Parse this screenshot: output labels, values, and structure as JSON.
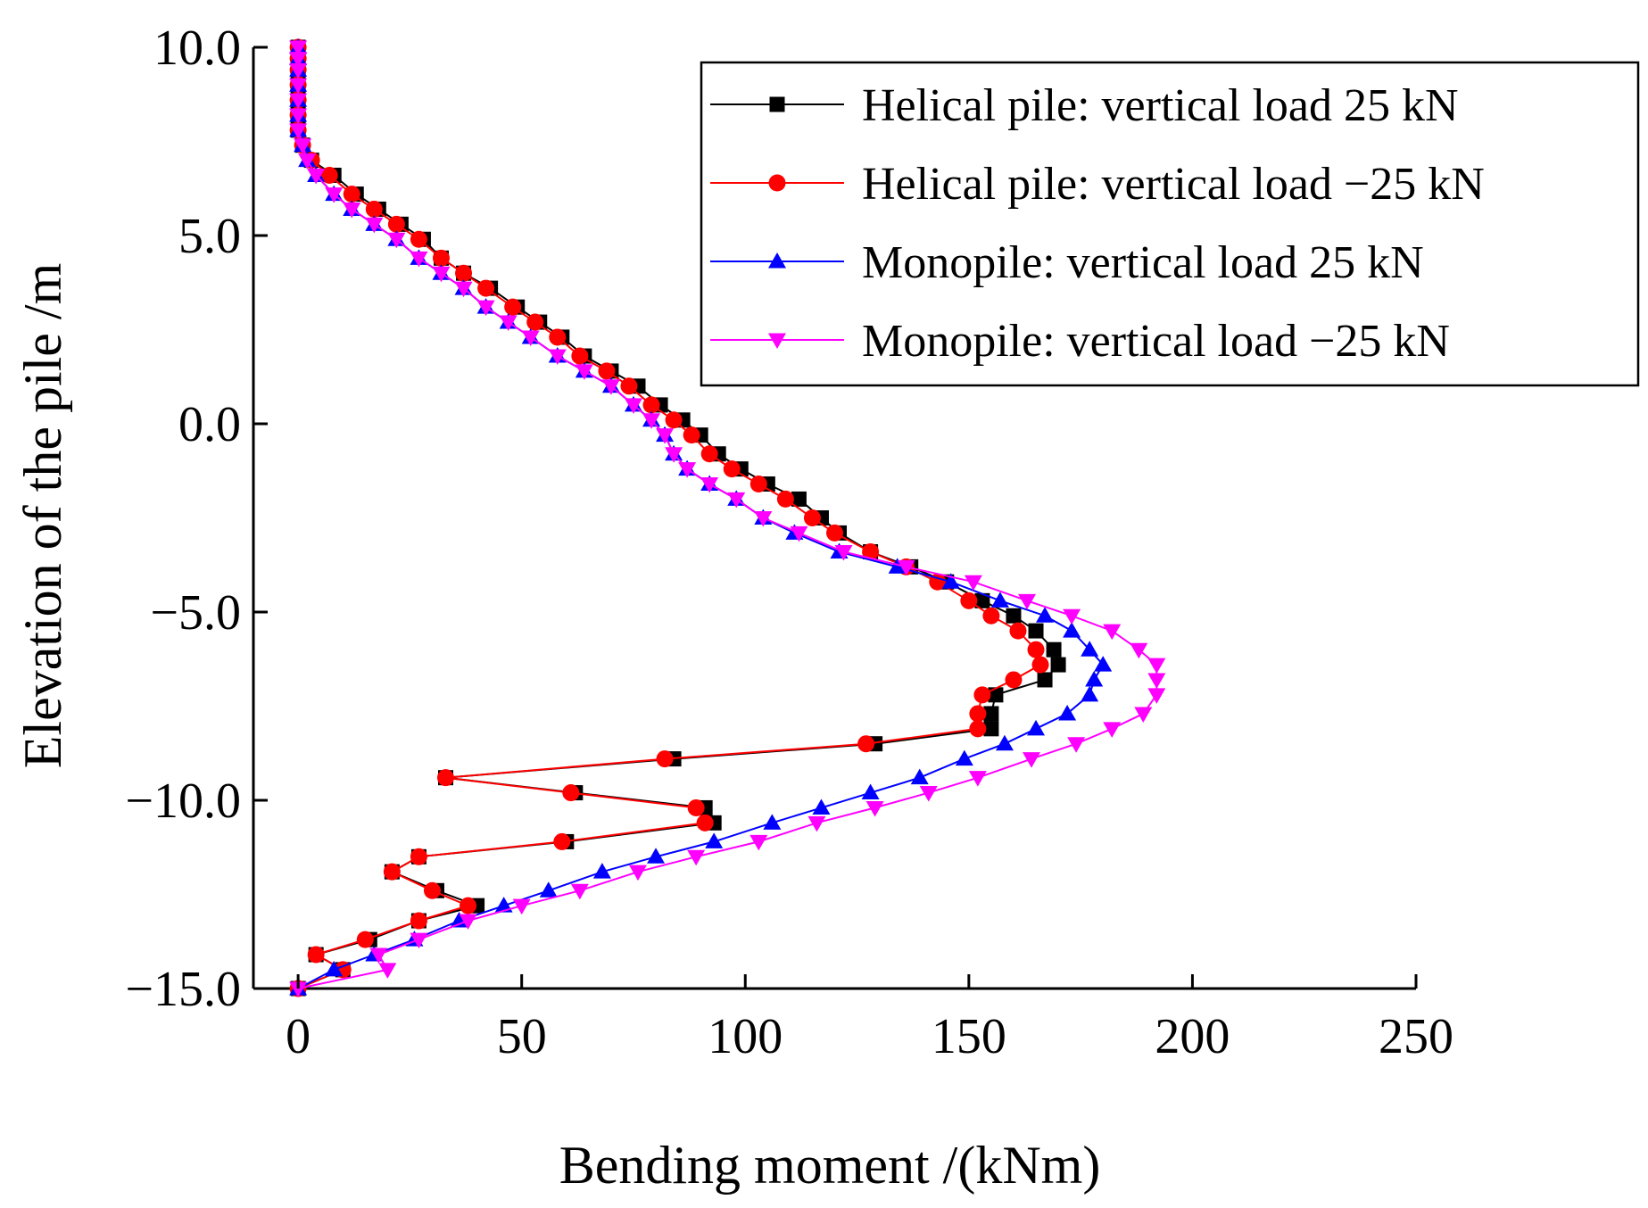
{
  "chart_data": {
    "type": "line",
    "title": "",
    "xlabel": "Bending moment /(kNm)",
    "ylabel": "Elevation of the pile /m",
    "xlim": [
      -10,
      250
    ],
    "ylim": [
      -15,
      10
    ],
    "xticks": [
      0,
      50,
      100,
      150,
      200,
      250
    ],
    "yticks": [
      10,
      5,
      0,
      -5,
      -10,
      -15
    ],
    "xtick_labels": [
      "0",
      "50",
      "100",
      "150",
      "200",
      "250"
    ],
    "ytick_labels": [
      "10.0",
      "5.0",
      "0.0",
      "−5.0",
      "−10.0",
      "−15.0"
    ],
    "grid": false,
    "legend_position": "top-right",
    "series": [
      {
        "name": "Helical pile: vertical load 25 kN",
        "color": "#000000",
        "marker": "square",
        "points": [
          [
            0,
            10
          ],
          [
            0,
            9.7
          ],
          [
            0,
            9.4
          ],
          [
            0,
            9.0
          ],
          [
            0,
            8.6
          ],
          [
            0,
            8.2
          ],
          [
            0,
            7.8
          ],
          [
            1,
            7.4
          ],
          [
            3,
            7.0
          ],
          [
            8,
            6.6
          ],
          [
            13,
            6.1
          ],
          [
            18,
            5.7
          ],
          [
            23,
            5.3
          ],
          [
            28,
            4.9
          ],
          [
            32,
            4.4
          ],
          [
            37,
            4.0
          ],
          [
            43,
            3.6
          ],
          [
            49,
            3.1
          ],
          [
            54,
            2.7
          ],
          [
            59,
            2.3
          ],
          [
            64,
            1.8
          ],
          [
            70,
            1.4
          ],
          [
            76,
            1.0
          ],
          [
            81,
            0.5
          ],
          [
            86,
            0.1
          ],
          [
            90,
            -0.3
          ],
          [
            94,
            -0.8
          ],
          [
            99,
            -1.2
          ],
          [
            105,
            -1.6
          ],
          [
            112,
            -2.0
          ],
          [
            117,
            -2.5
          ],
          [
            121,
            -2.9
          ],
          [
            128,
            -3.4
          ],
          [
            137,
            -3.8
          ],
          [
            145,
            -4.2
          ],
          [
            153,
            -4.7
          ],
          [
            160,
            -5.1
          ],
          [
            165,
            -5.5
          ],
          [
            169,
            -6.0
          ],
          [
            170,
            -6.4
          ],
          [
            167,
            -6.8
          ],
          [
            156,
            -7.2
          ],
          [
            155,
            -7.7
          ],
          [
            155,
            -8.1
          ],
          [
            129,
            -8.5
          ],
          [
            84,
            -8.9
          ],
          [
            33,
            -9.4
          ],
          [
            62,
            -9.8
          ],
          [
            91,
            -10.2
          ],
          [
            93,
            -10.6
          ],
          [
            60,
            -11.1
          ],
          [
            27,
            -11.5
          ],
          [
            21,
            -11.9
          ],
          [
            31,
            -12.4
          ],
          [
            40,
            -12.8
          ],
          [
            27,
            -13.2
          ],
          [
            16,
            -13.7
          ],
          [
            4,
            -14.1
          ],
          [
            10,
            -14.5
          ],
          [
            0,
            -15.0
          ]
        ]
      },
      {
        "name": "Helical pile: vertical load −25 kN",
        "color": "#ff0000",
        "marker": "circle",
        "points": [
          [
            0,
            10
          ],
          [
            0,
            9.7
          ],
          [
            0,
            9.4
          ],
          [
            0,
            9.0
          ],
          [
            0,
            8.6
          ],
          [
            0,
            8.2
          ],
          [
            0,
            7.8
          ],
          [
            1,
            7.4
          ],
          [
            3,
            7.0
          ],
          [
            7,
            6.6
          ],
          [
            12,
            6.1
          ],
          [
            17,
            5.7
          ],
          [
            22,
            5.3
          ],
          [
            27,
            4.9
          ],
          [
            32,
            4.4
          ],
          [
            37,
            4.0
          ],
          [
            42,
            3.6
          ],
          [
            48,
            3.1
          ],
          [
            53,
            2.7
          ],
          [
            58,
            2.3
          ],
          [
            63,
            1.8
          ],
          [
            69,
            1.4
          ],
          [
            74,
            1.0
          ],
          [
            79,
            0.5
          ],
          [
            84,
            0.1
          ],
          [
            88,
            -0.3
          ],
          [
            92,
            -0.8
          ],
          [
            97,
            -1.2
          ],
          [
            103,
            -1.6
          ],
          [
            109,
            -2.0
          ],
          [
            115,
            -2.5
          ],
          [
            120,
            -2.9
          ],
          [
            128,
            -3.4
          ],
          [
            136,
            -3.8
          ],
          [
            143,
            -4.2
          ],
          [
            150,
            -4.7
          ],
          [
            155,
            -5.1
          ],
          [
            161,
            -5.5
          ],
          [
            165,
            -6.0
          ],
          [
            166,
            -6.4
          ],
          [
            160,
            -6.8
          ],
          [
            153,
            -7.2
          ],
          [
            152,
            -7.7
          ],
          [
            152,
            -8.1
          ],
          [
            127,
            -8.5
          ],
          [
            82,
            -8.9
          ],
          [
            33,
            -9.4
          ],
          [
            61,
            -9.8
          ],
          [
            89,
            -10.2
          ],
          [
            91,
            -10.6
          ],
          [
            59,
            -11.1
          ],
          [
            27,
            -11.5
          ],
          [
            21,
            -11.9
          ],
          [
            30,
            -12.4
          ],
          [
            38,
            -12.8
          ],
          [
            27,
            -13.2
          ],
          [
            15,
            -13.7
          ],
          [
            4,
            -14.1
          ],
          [
            10,
            -14.5
          ],
          [
            0,
            -15.0
          ]
        ]
      },
      {
        "name": "Monopile: vertical load 25 kN",
        "color": "#0000ff",
        "marker": "triangle-up",
        "points": [
          [
            0,
            10
          ],
          [
            0,
            9.7
          ],
          [
            0,
            9.4
          ],
          [
            0,
            9.0
          ],
          [
            0,
            8.6
          ],
          [
            0,
            8.2
          ],
          [
            0,
            7.8
          ],
          [
            1,
            7.4
          ],
          [
            2,
            7.0
          ],
          [
            4,
            6.6
          ],
          [
            8,
            6.1
          ],
          [
            12,
            5.7
          ],
          [
            17,
            5.3
          ],
          [
            22,
            4.9
          ],
          [
            27,
            4.4
          ],
          [
            32,
            4.0
          ],
          [
            37,
            3.6
          ],
          [
            42,
            3.1
          ],
          [
            47,
            2.7
          ],
          [
            52,
            2.3
          ],
          [
            58,
            1.8
          ],
          [
            64,
            1.4
          ],
          [
            70,
            1.0
          ],
          [
            75,
            0.5
          ],
          [
            79,
            0.1
          ],
          [
            82,
            -0.3
          ],
          [
            84,
            -0.8
          ],
          [
            87,
            -1.2
          ],
          [
            92,
            -1.6
          ],
          [
            98,
            -2.0
          ],
          [
            104,
            -2.5
          ],
          [
            111,
            -2.9
          ],
          [
            121,
            -3.4
          ],
          [
            134,
            -3.8
          ],
          [
            146,
            -4.2
          ],
          [
            157,
            -4.7
          ],
          [
            167,
            -5.1
          ],
          [
            173,
            -5.5
          ],
          [
            177,
            -6.0
          ],
          [
            180,
            -6.4
          ],
          [
            178,
            -6.8
          ],
          [
            177,
            -7.2
          ],
          [
            172,
            -7.7
          ],
          [
            165,
            -8.1
          ],
          [
            158,
            -8.5
          ],
          [
            149,
            -8.9
          ],
          [
            139,
            -9.4
          ],
          [
            128,
            -9.8
          ],
          [
            117,
            -10.2
          ],
          [
            106,
            -10.6
          ],
          [
            93,
            -11.1
          ],
          [
            80,
            -11.5
          ],
          [
            68,
            -11.9
          ],
          [
            56,
            -12.4
          ],
          [
            46,
            -12.8
          ],
          [
            36,
            -13.2
          ],
          [
            26,
            -13.7
          ],
          [
            17,
            -14.1
          ],
          [
            8,
            -14.5
          ],
          [
            0,
            -15.0
          ]
        ]
      },
      {
        "name": "Monopile: vertical load −25 kN",
        "color": "#ff00ff",
        "marker": "triangle-down",
        "points": [
          [
            0,
            10
          ],
          [
            0,
            9.7
          ],
          [
            0,
            9.4
          ],
          [
            0,
            9.0
          ],
          [
            0,
            8.6
          ],
          [
            0,
            8.2
          ],
          [
            0,
            7.8
          ],
          [
            1,
            7.4
          ],
          [
            2,
            7.0
          ],
          [
            4,
            6.6
          ],
          [
            8,
            6.1
          ],
          [
            12,
            5.7
          ],
          [
            17,
            5.3
          ],
          [
            22,
            4.9
          ],
          [
            27,
            4.4
          ],
          [
            32,
            4.0
          ],
          [
            37,
            3.6
          ],
          [
            42,
            3.1
          ],
          [
            47,
            2.7
          ],
          [
            52,
            2.3
          ],
          [
            58,
            1.8
          ],
          [
            64,
            1.4
          ],
          [
            70,
            1.0
          ],
          [
            75,
            0.5
          ],
          [
            79,
            0.1
          ],
          [
            82,
            -0.3
          ],
          [
            84,
            -0.8
          ],
          [
            87,
            -1.2
          ],
          [
            92,
            -1.6
          ],
          [
            98,
            -2.0
          ],
          [
            104,
            -2.5
          ],
          [
            112,
            -2.9
          ],
          [
            122,
            -3.4
          ],
          [
            136,
            -3.8
          ],
          [
            151,
            -4.2
          ],
          [
            163,
            -4.7
          ],
          [
            173,
            -5.1
          ],
          [
            182,
            -5.5
          ],
          [
            188,
            -6.0
          ],
          [
            192,
            -6.4
          ],
          [
            192,
            -6.8
          ],
          [
            192,
            -7.2
          ],
          [
            189,
            -7.7
          ],
          [
            182,
            -8.1
          ],
          [
            174,
            -8.5
          ],
          [
            164,
            -8.9
          ],
          [
            152,
            -9.4
          ],
          [
            141,
            -9.8
          ],
          [
            129,
            -10.2
          ],
          [
            116,
            -10.6
          ],
          [
            103,
            -11.1
          ],
          [
            89,
            -11.5
          ],
          [
            76,
            -11.9
          ],
          [
            63,
            -12.4
          ],
          [
            50,
            -12.8
          ],
          [
            38,
            -13.2
          ],
          [
            27,
            -13.7
          ],
          [
            18,
            -14.1
          ],
          [
            20,
            -14.5
          ],
          [
            0,
            -15.0
          ]
        ]
      }
    ]
  }
}
